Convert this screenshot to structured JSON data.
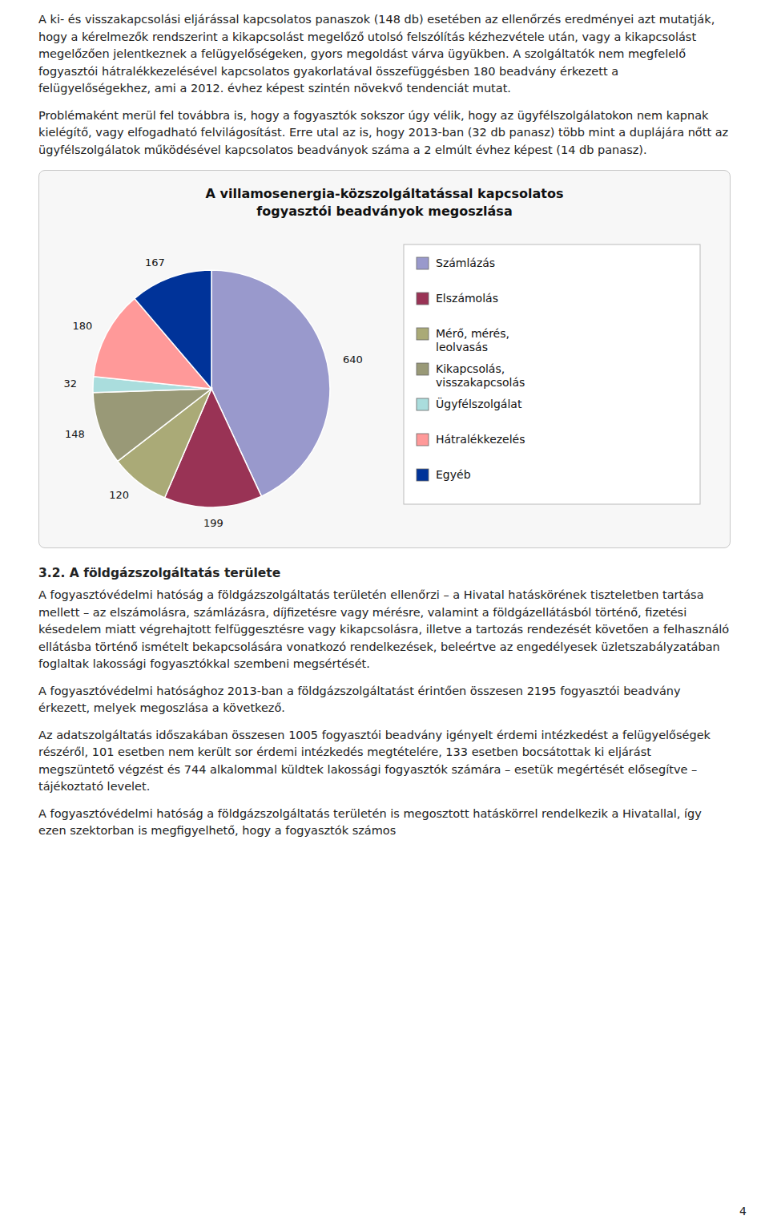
{
  "chart_data": {
    "type": "pie",
    "title": "A villamosenergia-közszolgáltatással kapcsolatos\nfogyasztói beadványok megoszlása",
    "categories": [
      "Számlázás",
      "Elszámolás",
      "Mérő, mérés,\nleolvasás",
      "Kikapcsolás,\nvisszakapcsolás",
      "Ügyfélszolgálat",
      "Hátralékkezelés",
      "Egyéb"
    ],
    "values": [
      640,
      199,
      120,
      148,
      32,
      180,
      167
    ],
    "colors": [
      "#9999cc",
      "#993355",
      "#aaaa77",
      "#999977",
      "#aadddd",
      "#ff9999",
      "#003399"
    ],
    "data_labels": true,
    "legend": "right"
  },
  "page": {
    "text_before": [
      "A ki- és visszakapcsolási eljárással kapcsolatos panaszok (148 db) esetében az ellenőrzés eredményei azt mutatják, hogy a kérelmezők rendszerint a kikapcsolást megelőző utolsó felszólítás kézhezvétele után, vagy a kikapcsolást megelőzően jelentkeznek a felügyelőségeken, gyors megoldást várva ügyükben. A szolgáltatók nem megfelelő fogyasztói hátralékkezelésével kapcsolatos gyakorlatával összefüggésben 180 beadvány érkezett a felügyelőségekhez, ami a 2012. évhez képest szintén növekvő tendenciát mutat.",
      "Problémaként merül fel továbbra is, hogy a fogyasztók sokszor úgy vélik, hogy az ügyfélszolgálatokon nem kapnak kielégítő, vagy elfogadható felvilágosítást. Erre utal az is, hogy 2013-ban (32 db panasz) több mint a duplájára nőtt az ügyfélszolgálatok működésével kapcsolatos beadványok száma a 2 elmúlt évhez képest (14 db panasz)."
    ],
    "heading": "3.2. A földgázszolgáltatás területe",
    "text_after": [
      "A fogyasztóvédelmi hatóság a földgázszolgáltatás területén ellenőrzi – a Hivatal hatáskörének tiszteletben tartása mellett – az elszámolásra, számlázásra, díjfizetésre vagy mérésre, valamint a földgázellátásból történő, fizetési késedelem miatt végrehajtott felfüggesztésre vagy kikapcsolásra, illetve a tartozás rendezését követően a felhasználó ellátásba történő ismételt bekapcsolására vonatkozó rendelkezések, beleértve az engedélyesek üzletszabályzatában foglaltak lakossági fogyasztókkal szembeni megsértését.",
      "A fogyasztóvédelmi hatósághoz 2013-ban a földgázszolgáltatást érintően összesen 2195 fogyasztói beadvány érkezett, melyek megoszlása a következő.",
      "Az adatszolgáltatás időszakában összesen 1005 fogyasztói beadvány igényelt érdemi intézkedést a felügyelőségek részéről, 101 esetben nem került sor érdemi intézkedés megtételére, 133 esetben bocsátottak ki eljárást megszüntető végzést és 744 alkalommal küldtek lakossági fogyasztók számára – esetük megértését elősegítve – tájékoztató levelet.",
      "A fogyasztóvédelmi hatóság a földgázszolgáltatás területén is megosztott hatáskörrel rendelkezik a Hivatallal, így ezen szektorban is megfigyelhető, hogy a fogyasztók számos"
    ],
    "page_number": "4"
  }
}
